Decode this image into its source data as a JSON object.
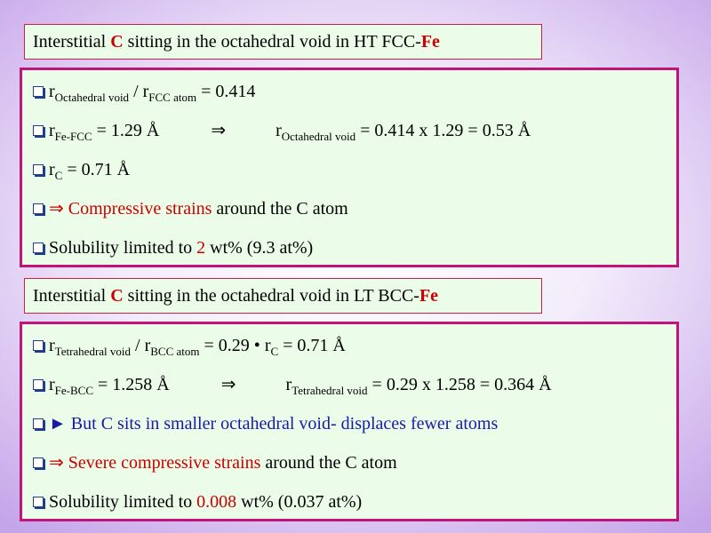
{
  "slide": {
    "sections": [
      {
        "title": [
          "Interstitial ",
          "C",
          " sitting in the octahedral void in HT FCC-",
          "Fe"
        ],
        "items": [
          [
            "r",
            "Octahedral void",
            " / r",
            "FCC atom",
            " = 0.414"
          ],
          [
            "r",
            "Fe-FCC",
            " = 1.29 Å",
            "⇒",
            "r",
            "Octahedral void",
            " = 0.414 x 1.29 = 0.53 Å"
          ],
          [
            "r",
            "C",
            " = 0.71 Å"
          ],
          [
            "⇒ Compressive strains",
            " around the C atom"
          ],
          [
            "Solubility limited to ",
            "2",
            " wt% (9.3 at%)"
          ]
        ]
      },
      {
        "title": [
          "Interstitial ",
          "C",
          " sitting in the octahedral void in LT BCC-",
          "Fe"
        ],
        "items": [
          [
            "r",
            "Tetrahedral void",
            " / r",
            "BCC atom",
            " = 0.29 ",
            "•",
            " r",
            "C",
            " = 0.71 Å"
          ],
          [
            "r",
            "Fe-BCC",
            " = 1.258 Å",
            "⇒",
            "r",
            "Tetrahedral void",
            " = 0.29 x 1.258 = 0.364 Å"
          ],
          [
            "► But C sits in smaller octahedral void- displaces fewer atoms"
          ],
          [
            "⇒ Severe compressive strains",
            " around the C atom"
          ],
          [
            "Solubility limited to ",
            "0.008",
            " wt% (0.037 at%)"
          ]
        ]
      }
    ]
  }
}
